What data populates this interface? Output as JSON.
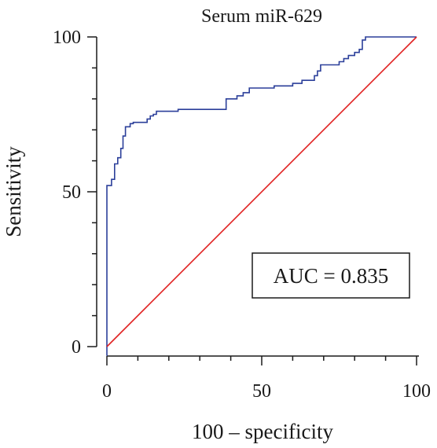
{
  "chart_data": {
    "type": "line",
    "title": "Serum miR-629",
    "xlabel": "100 – specificity",
    "ylabel": "Sensitivity",
    "xlim": [
      0,
      100
    ],
    "ylim": [
      0,
      100
    ],
    "x_ticks": [
      "0",
      "50",
      "100"
    ],
    "y_ticks": [
      "0",
      "50",
      "100"
    ],
    "grid": false,
    "annotation": "AUC = 0.835",
    "series": [
      {
        "color": "#2b3f9a",
        "points": [
          [
            0,
            -3
          ],
          [
            0,
            52
          ],
          [
            1.5,
            52
          ],
          [
            1.5,
            54
          ],
          [
            2.5,
            54
          ],
          [
            2.5,
            59
          ],
          [
            3.5,
            59
          ],
          [
            3.5,
            61
          ],
          [
            4.5,
            61
          ],
          [
            4.5,
            64
          ],
          [
            5.2,
            64
          ],
          [
            5.2,
            68
          ],
          [
            6,
            68
          ],
          [
            6,
            71
          ],
          [
            7.5,
            71
          ],
          [
            7.5,
            72
          ],
          [
            8.5,
            72
          ],
          [
            8.5,
            72.4
          ],
          [
            13,
            72.4
          ],
          [
            13,
            73.5
          ],
          [
            14,
            73.5
          ],
          [
            14,
            74.5
          ],
          [
            15,
            74.5
          ],
          [
            15,
            75
          ],
          [
            16,
            75
          ],
          [
            16,
            76
          ],
          [
            23,
            76
          ],
          [
            23,
            76.6
          ],
          [
            38.5,
            76.6
          ],
          [
            38.5,
            80
          ],
          [
            42,
            80
          ],
          [
            42,
            81
          ],
          [
            44,
            81
          ],
          [
            44,
            82
          ],
          [
            46,
            82
          ],
          [
            46,
            83.5
          ],
          [
            54,
            83.5
          ],
          [
            54,
            84.2
          ],
          [
            60,
            84.2
          ],
          [
            60,
            85
          ],
          [
            63,
            85
          ],
          [
            63,
            86
          ],
          [
            67,
            86
          ],
          [
            67,
            87.5
          ],
          [
            68,
            87.5
          ],
          [
            68,
            89
          ],
          [
            69,
            89
          ],
          [
            69,
            91
          ],
          [
            75,
            91
          ],
          [
            75,
            92
          ],
          [
            76.5,
            92
          ],
          [
            76.5,
            93
          ],
          [
            78,
            93
          ],
          [
            78,
            94
          ],
          [
            80,
            94
          ],
          [
            80,
            95
          ],
          [
            81.5,
            95
          ],
          [
            81.5,
            96
          ],
          [
            82.5,
            96
          ],
          [
            82.5,
            99
          ],
          [
            83.5,
            99
          ],
          [
            83.5,
            100
          ],
          [
            100,
            100
          ]
        ]
      },
      {
        "color": "#e02020",
        "points": [
          [
            0,
            0
          ],
          [
            100,
            100
          ]
        ]
      }
    ]
  }
}
